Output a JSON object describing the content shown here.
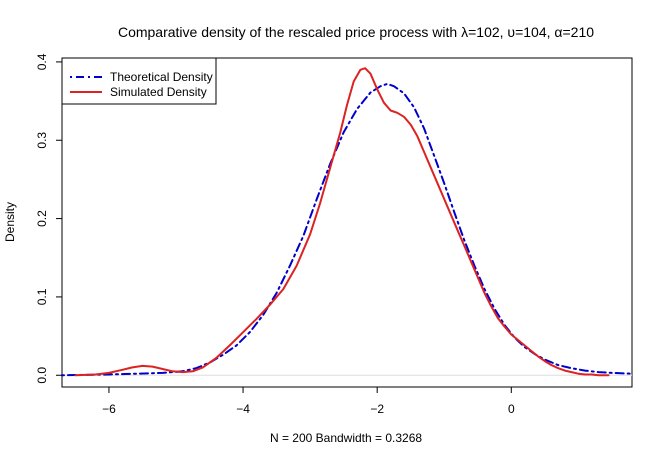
{
  "chart_data": {
    "type": "line",
    "title": "Comparative density of the rescaled price process with λ=102, υ=104, α=210",
    "xlabel": "N = 200   Bandwidth = 0.3268",
    "ylabel": "Density",
    "xlim": [
      -6.7,
      1.8
    ],
    "ylim": [
      -0.015,
      0.405
    ],
    "x_ticks": [
      -6,
      -4,
      -2,
      0
    ],
    "y_ticks": [
      0.0,
      0.1,
      0.2,
      0.3,
      0.4
    ],
    "x_tick_labels": [
      "−6",
      "−4",
      "−2",
      "0"
    ],
    "y_tick_labels": [
      "0.0",
      "0.1",
      "0.2",
      "0.3",
      "0.4"
    ],
    "grid": false,
    "legend_position": "top-left",
    "series": [
      {
        "name": "Theoretical Density",
        "color": "#0000cc",
        "style": "dotdash",
        "x": [
          -6.7,
          -6.4,
          -6.0,
          -5.6,
          -5.2,
          -4.9,
          -4.7,
          -4.5,
          -4.3,
          -4.1,
          -3.9,
          -3.7,
          -3.5,
          -3.3,
          -3.1,
          -2.9,
          -2.7,
          -2.5,
          -2.3,
          -2.1,
          -1.95,
          -1.85,
          -1.75,
          -1.6,
          -1.45,
          -1.3,
          -1.15,
          -1.0,
          -0.85,
          -0.7,
          -0.55,
          -0.4,
          -0.25,
          -0.1,
          0.05,
          0.2,
          0.35,
          0.5,
          0.7,
          0.9,
          1.1,
          1.3,
          1.5,
          1.8
        ],
        "y": [
          0.0,
          0.0005,
          0.001,
          0.002,
          0.003,
          0.005,
          0.009,
          0.016,
          0.026,
          0.038,
          0.055,
          0.077,
          0.105,
          0.14,
          0.178,
          0.225,
          0.27,
          0.31,
          0.34,
          0.361,
          0.369,
          0.372,
          0.369,
          0.36,
          0.342,
          0.315,
          0.28,
          0.245,
          0.208,
          0.172,
          0.14,
          0.11,
          0.085,
          0.064,
          0.048,
          0.036,
          0.027,
          0.02,
          0.013,
          0.009,
          0.006,
          0.004,
          0.003,
          0.002
        ]
      },
      {
        "name": "Simulated Density",
        "color": "#dd2222",
        "style": "solid",
        "x": [
          -6.5,
          -6.2,
          -6.0,
          -5.8,
          -5.65,
          -5.5,
          -5.35,
          -5.2,
          -5.05,
          -4.9,
          -4.75,
          -4.6,
          -4.4,
          -4.2,
          -4.0,
          -3.8,
          -3.6,
          -3.4,
          -3.2,
          -3.0,
          -2.85,
          -2.7,
          -2.55,
          -2.45,
          -2.35,
          -2.25,
          -2.18,
          -2.1,
          -2.0,
          -1.9,
          -1.8,
          -1.7,
          -1.6,
          -1.5,
          -1.4,
          -1.3,
          -1.2,
          -1.1,
          -1.0,
          -0.9,
          -0.8,
          -0.7,
          -0.6,
          -0.5,
          -0.4,
          -0.3,
          -0.2,
          -0.1,
          0.0,
          0.1,
          0.2,
          0.3,
          0.4,
          0.5,
          0.6,
          0.7,
          0.8,
          0.9,
          1.0,
          1.1,
          1.2,
          1.3,
          1.45
        ],
        "y": [
          0.0,
          0.001,
          0.003,
          0.007,
          0.01,
          0.012,
          0.011,
          0.008,
          0.005,
          0.004,
          0.005,
          0.01,
          0.022,
          0.038,
          0.055,
          0.072,
          0.09,
          0.11,
          0.14,
          0.18,
          0.22,
          0.265,
          0.31,
          0.345,
          0.375,
          0.39,
          0.392,
          0.385,
          0.365,
          0.348,
          0.338,
          0.335,
          0.33,
          0.32,
          0.305,
          0.285,
          0.265,
          0.245,
          0.225,
          0.205,
          0.185,
          0.165,
          0.145,
          0.125,
          0.105,
          0.088,
          0.073,
          0.062,
          0.052,
          0.045,
          0.038,
          0.031,
          0.024,
          0.018,
          0.013,
          0.009,
          0.006,
          0.004,
          0.002,
          0.001,
          0.001,
          0.0,
          0.0
        ]
      }
    ]
  }
}
